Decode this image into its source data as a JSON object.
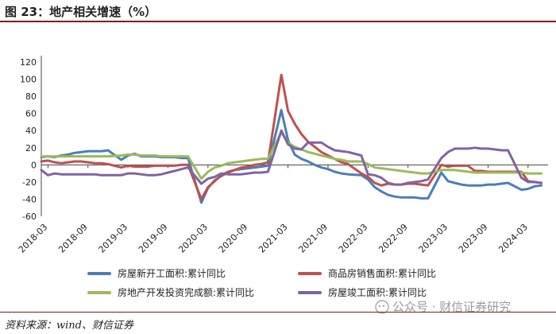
{
  "figure": {
    "title": "图 23：地产相关增速（%）"
  },
  "source": "资料来源：wind、财信证券",
  "watermark": "公众号 · 财信证券研究",
  "colors": {
    "header_rule": "#8b1a1a"
  },
  "chart_data": {
    "type": "line",
    "title": "",
    "xlabel": "",
    "ylabel": "",
    "ylim": [
      -60,
      120
    ],
    "yticks": [
      -60,
      -40,
      -20,
      0,
      20,
      40,
      60,
      80,
      100,
      120
    ],
    "xticks": [
      "2018-03",
      "2018-09",
      "2019-03",
      "2019-09",
      "2020-03",
      "2020-09",
      "2021-03",
      "2021-09",
      "2022-03",
      "2022-09",
      "2023-03",
      "2023-09",
      "2024-03"
    ],
    "grid": false,
    "legend_position": "bottom",
    "x": [
      "2018-02",
      "2018-03",
      "2018-04",
      "2018-05",
      "2018-06",
      "2018-07",
      "2018-08",
      "2018-09",
      "2018-10",
      "2018-11",
      "2018-12",
      "2019-02",
      "2019-03",
      "2019-04",
      "2019-05",
      "2019-06",
      "2019-07",
      "2019-08",
      "2019-09",
      "2019-10",
      "2019-11",
      "2019-12",
      "2020-02",
      "2020-03",
      "2020-04",
      "2020-05",
      "2020-06",
      "2020-07",
      "2020-08",
      "2020-09",
      "2020-10",
      "2020-11",
      "2020-12",
      "2021-02",
      "2021-03",
      "2021-04",
      "2021-05",
      "2021-06",
      "2021-07",
      "2021-08",
      "2021-09",
      "2021-10",
      "2021-11",
      "2021-12",
      "2022-02",
      "2022-03",
      "2022-04",
      "2022-05",
      "2022-06",
      "2022-07",
      "2022-08",
      "2022-09",
      "2022-10",
      "2022-11",
      "2022-12",
      "2023-02",
      "2023-03",
      "2023-04",
      "2023-05",
      "2023-06",
      "2023-07",
      "2023-08",
      "2023-09",
      "2023-10",
      "2023-11",
      "2023-12",
      "2024-02",
      "2024-03",
      "2024-04",
      "2024-05"
    ],
    "series": [
      {
        "name": "房屋新开工面积:累计同比",
        "color": "#4a7ebb",
        "values": [
          9,
          10,
          9,
          11,
          12,
          14,
          15,
          16,
          16,
          16,
          17,
          6,
          11,
          13,
          10,
          10,
          10,
          9,
          9,
          9,
          8,
          8,
          -44,
          -27,
          -18,
          -13,
          -9,
          -6,
          -5,
          -4,
          -3,
          -2,
          -1,
          64,
          29,
          12,
          7,
          4,
          0,
          -3,
          -5,
          -8,
          -10,
          -11,
          -12,
          -17,
          -26,
          -31,
          -35,
          -37,
          -38,
          -38,
          -38,
          -39,
          -39,
          -9,
          -19,
          -21,
          -23,
          -24,
          -24,
          -24,
          -23,
          -23,
          -22,
          -21,
          -29,
          -28,
          -25,
          -24
        ]
      },
      {
        "name": "商品房销售面积:累计同比",
        "color": "#c0504d",
        "values": [
          4,
          5,
          3,
          2,
          3,
          4,
          4,
          3,
          2,
          2,
          1,
          -3,
          -1,
          -2,
          -2,
          -2,
          -1,
          -1,
          -1,
          -1,
          0,
          0,
          -40,
          -26,
          -19,
          -12,
          -8,
          -6,
          -3,
          -2,
          0,
          1,
          3,
          105,
          63,
          48,
          36,
          27,
          21,
          15,
          11,
          7,
          3,
          1,
          -10,
          -14,
          -21,
          -24,
          -22,
          -23,
          -23,
          -22,
          -22,
          -23,
          -24,
          0,
          -2,
          -1,
          -1,
          -1,
          -7,
          -7,
          -8,
          -8,
          -8,
          -8,
          -8,
          -19,
          -20,
          -21
        ]
      },
      {
        "name": "房地产开发投资完成额:累计同比",
        "color": "#9bbb59",
        "values": [
          10,
          10,
          10,
          10,
          10,
          10,
          10,
          10,
          10,
          10,
          10,
          11,
          12,
          12,
          11,
          11,
          11,
          10,
          10,
          10,
          10,
          10,
          -16,
          -8,
          -3,
          -1,
          2,
          3,
          4,
          5,
          6,
          7,
          7,
          38,
          26,
          21,
          18,
          15,
          13,
          11,
          9,
          7,
          6,
          4,
          4,
          1,
          -3,
          -4,
          -5,
          -6,
          -7,
          -8,
          -9,
          -10,
          -10,
          -6,
          -6,
          -6,
          -7,
          -8,
          -9,
          -9,
          -9,
          -9,
          -9,
          -9,
          -9,
          -10,
          -10,
          -10
        ]
      },
      {
        "name": "房屋竣工面积:累计同比",
        "color": "#8064a2",
        "values": [
          -6,
          -12,
          -10,
          -11,
          -11,
          -11,
          -11,
          -11,
          -11,
          -12,
          -12,
          -12,
          -10,
          -10,
          -11,
          -12,
          -12,
          -11,
          -9,
          -7,
          -5,
          -3,
          -22,
          -16,
          -14,
          -10,
          -11,
          -11,
          -11,
          -10,
          -9,
          -9,
          -8,
          40,
          24,
          19,
          18,
          26,
          26,
          26,
          21,
          17,
          16,
          15,
          11,
          -11,
          -12,
          -15,
          -21,
          -23,
          -23,
          -21,
          -20,
          -19,
          -17,
          8,
          15,
          19,
          19,
          19,
          20,
          19,
          19,
          18,
          17,
          17,
          -15,
          -20,
          -20,
          -21
        ]
      }
    ]
  }
}
